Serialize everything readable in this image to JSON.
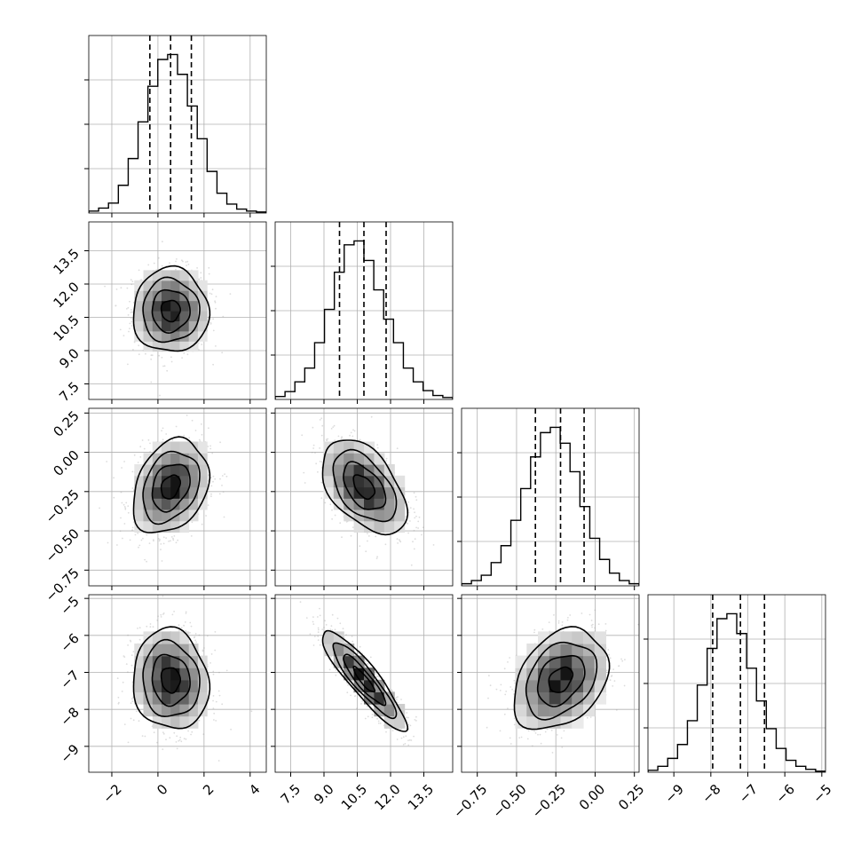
{
  "chart_data": {
    "type": "corner",
    "title": "",
    "parameters": [
      {
        "range": [
          -3.0,
          4.7
        ],
        "ticks": [
          -2,
          0,
          2,
          4
        ],
        "tick_labels": [
          "−2",
          "0",
          "2",
          "4"
        ],
        "quantiles": [
          -0.35,
          0.55,
          1.45
        ],
        "hist_counts": [
          2,
          5,
          10,
          28,
          55,
          92,
          128,
          155,
          160,
          140,
          108,
          75,
          42,
          20,
          9,
          4,
          2,
          1
        ]
      },
      {
        "range": [
          6.8,
          14.8
        ],
        "ticks": [
          7.5,
          9.0,
          10.5,
          12.0,
          13.5
        ],
        "tick_labels": [
          "7.5",
          "9.0",
          "10.5",
          "12.0",
          "13.5"
        ],
        "quantiles": [
          9.7,
          10.8,
          11.8
        ],
        "hist_counts": [
          3,
          8,
          18,
          32,
          58,
          92,
          130,
          158,
          162,
          142,
          112,
          82,
          58,
          32,
          18,
          9,
          4,
          2
        ]
      },
      {
        "range": [
          -0.85,
          0.28
        ],
        "ticks": [
          -0.75,
          -0.5,
          -0.25,
          0.0,
          0.25
        ],
        "tick_labels": [
          "−0.75",
          "−0.50",
          "−0.25",
          "0.00",
          "0.25"
        ],
        "quantiles": [
          -0.38,
          -0.22,
          -0.07
        ],
        "hist_counts": [
          2,
          5,
          10,
          22,
          38,
          62,
          92,
          122,
          145,
          150,
          135,
          108,
          75,
          45,
          25,
          12,
          5,
          2
        ]
      },
      {
        "range": [
          -9.7,
          -4.9
        ],
        "ticks": [
          -9,
          -8,
          -7,
          -6,
          -5
        ],
        "tick_labels": [
          "−9",
          "−8",
          "−7",
          "−6",
          "−5"
        ],
        "quantiles": [
          -7.95,
          -7.2,
          -6.55
        ],
        "hist_counts": [
          2,
          6,
          14,
          28,
          52,
          88,
          125,
          155,
          160,
          140,
          105,
          72,
          44,
          24,
          12,
          6,
          3,
          1
        ]
      }
    ],
    "pairs": [
      {
        "row": 1,
        "col": 0,
        "mean": [
          0.55,
          10.8
        ],
        "sigma": [
          0.82,
          0.95
        ],
        "rho": 0.0
      },
      {
        "row": 2,
        "col": 0,
        "mean": [
          0.55,
          -0.22
        ],
        "sigma": [
          0.82,
          0.15
        ],
        "rho": 0.28
      },
      {
        "row": 2,
        "col": 1,
        "mean": [
          10.8,
          -0.22
        ],
        "sigma": [
          0.95,
          0.15
        ],
        "rho": -0.48
      },
      {
        "row": 3,
        "col": 0,
        "mean": [
          0.55,
          -7.2
        ],
        "sigma": [
          0.82,
          0.68
        ],
        "rho": -0.08
      },
      {
        "row": 3,
        "col": 1,
        "mean": [
          10.8,
          -7.2
        ],
        "sigma": [
          0.95,
          0.68
        ],
        "rho": -0.9
      },
      {
        "row": 3,
        "col": 2,
        "mean": [
          -0.22,
          -7.2
        ],
        "sigma": [
          0.15,
          0.68
        ],
        "rho": 0.32
      }
    ],
    "contour_levels_sigma": [
      0.5,
      1.0,
      1.5,
      2.0
    ],
    "grid": true,
    "colors": {
      "line": "#000000",
      "points": "#9e9e9e",
      "grid": "#b0b0b0"
    }
  }
}
